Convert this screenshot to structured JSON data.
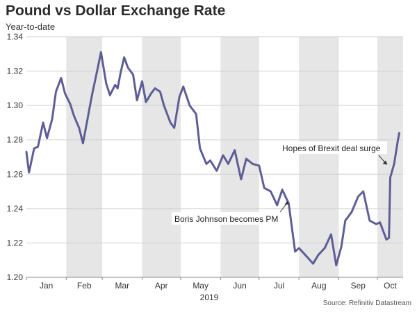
{
  "title": "Pound vs Dollar Exchange Rate",
  "subtitle": "Year-to-date",
  "source": "Source: Refinitiv Datastream",
  "chart_data": {
    "type": "line",
    "title": "Pound vs Dollar Exchange Rate",
    "subtitle": "Year-to-date",
    "xlabel": "2019",
    "ylabel": "",
    "ylim": [
      1.2,
      1.34
    ],
    "yticks": [
      "1.20",
      "1.22",
      "1.24",
      "1.26",
      "1.28",
      "1.30",
      "1.32",
      "1.34"
    ],
    "xticks": [
      "Jan",
      "Feb",
      "Mar",
      "Apr",
      "May",
      "Jun",
      "Jul",
      "Aug",
      "Sep",
      "Oct"
    ],
    "grid": true,
    "shaded_months": [
      "Feb",
      "Apr",
      "Jun",
      "Aug",
      "Oct"
    ],
    "line_color": "#5e5e96",
    "series": [
      {
        "name": "",
        "x": [
          "2019-01-01",
          "2019-01-03",
          "2019-01-07",
          "2019-01-10",
          "2019-01-14",
          "2019-01-17",
          "2019-01-21",
          "2019-01-24",
          "2019-01-28",
          "2019-01-31",
          "2019-02-04",
          "2019-02-07",
          "2019-02-11",
          "2019-02-14",
          "2019-02-18",
          "2019-02-21",
          "2019-02-25",
          "2019-02-28",
          "2019-03-04",
          "2019-03-07",
          "2019-03-11",
          "2019-03-13",
          "2019-03-15",
          "2019-03-18",
          "2019-03-21",
          "2019-03-25",
          "2019-03-28",
          "2019-04-01",
          "2019-04-04",
          "2019-04-08",
          "2019-04-11",
          "2019-04-15",
          "2019-04-18",
          "2019-04-23",
          "2019-04-26",
          "2019-04-30",
          "2019-05-03",
          "2019-05-08",
          "2019-05-13",
          "2019-05-16",
          "2019-05-21",
          "2019-05-24",
          "2019-05-29",
          "2019-06-03",
          "2019-06-07",
          "2019-06-12",
          "2019-06-17",
          "2019-06-21",
          "2019-06-26",
          "2019-07-01",
          "2019-07-05",
          "2019-07-10",
          "2019-07-15",
          "2019-07-19",
          "2019-07-24",
          "2019-07-29",
          "2019-08-01",
          "2019-08-06",
          "2019-08-12",
          "2019-08-16",
          "2019-08-21",
          "2019-08-26",
          "2019-08-30",
          "2019-09-03",
          "2019-09-06",
          "2019-09-11",
          "2019-09-16",
          "2019-09-20",
          "2019-09-25",
          "2019-09-30",
          "2019-10-03",
          "2019-10-08",
          "2019-10-10",
          "2019-10-11",
          "2019-10-14",
          "2019-10-17",
          "2019-10-18"
        ],
        "values": [
          1.273,
          1.261,
          1.275,
          1.276,
          1.29,
          1.281,
          1.292,
          1.308,
          1.316,
          1.307,
          1.301,
          1.294,
          1.287,
          1.278,
          1.294,
          1.306,
          1.32,
          1.331,
          1.313,
          1.306,
          1.312,
          1.31,
          1.318,
          1.328,
          1.322,
          1.318,
          1.303,
          1.314,
          1.302,
          1.307,
          1.31,
          1.308,
          1.3,
          1.29,
          1.287,
          1.305,
          1.311,
          1.3,
          1.295,
          1.275,
          1.266,
          1.268,
          1.262,
          1.271,
          1.266,
          1.274,
          1.257,
          1.269,
          1.266,
          1.265,
          1.252,
          1.25,
          1.242,
          1.251,
          1.243,
          1.215,
          1.217,
          1.213,
          1.208,
          1.213,
          1.217,
          1.225,
          1.207,
          1.218,
          1.233,
          1.238,
          1.247,
          1.25,
          1.233,
          1.231,
          1.232,
          1.222,
          1.223,
          1.258,
          1.266,
          1.28,
          1.284
        ]
      }
    ],
    "annotations": [
      {
        "text": "Boris Johnson becomes PM",
        "x": "2019-07-24",
        "y": 1.245
      },
      {
        "text": "Hopes of Brexit deal surge",
        "x": "2019-10-10",
        "y": 1.266
      }
    ]
  }
}
